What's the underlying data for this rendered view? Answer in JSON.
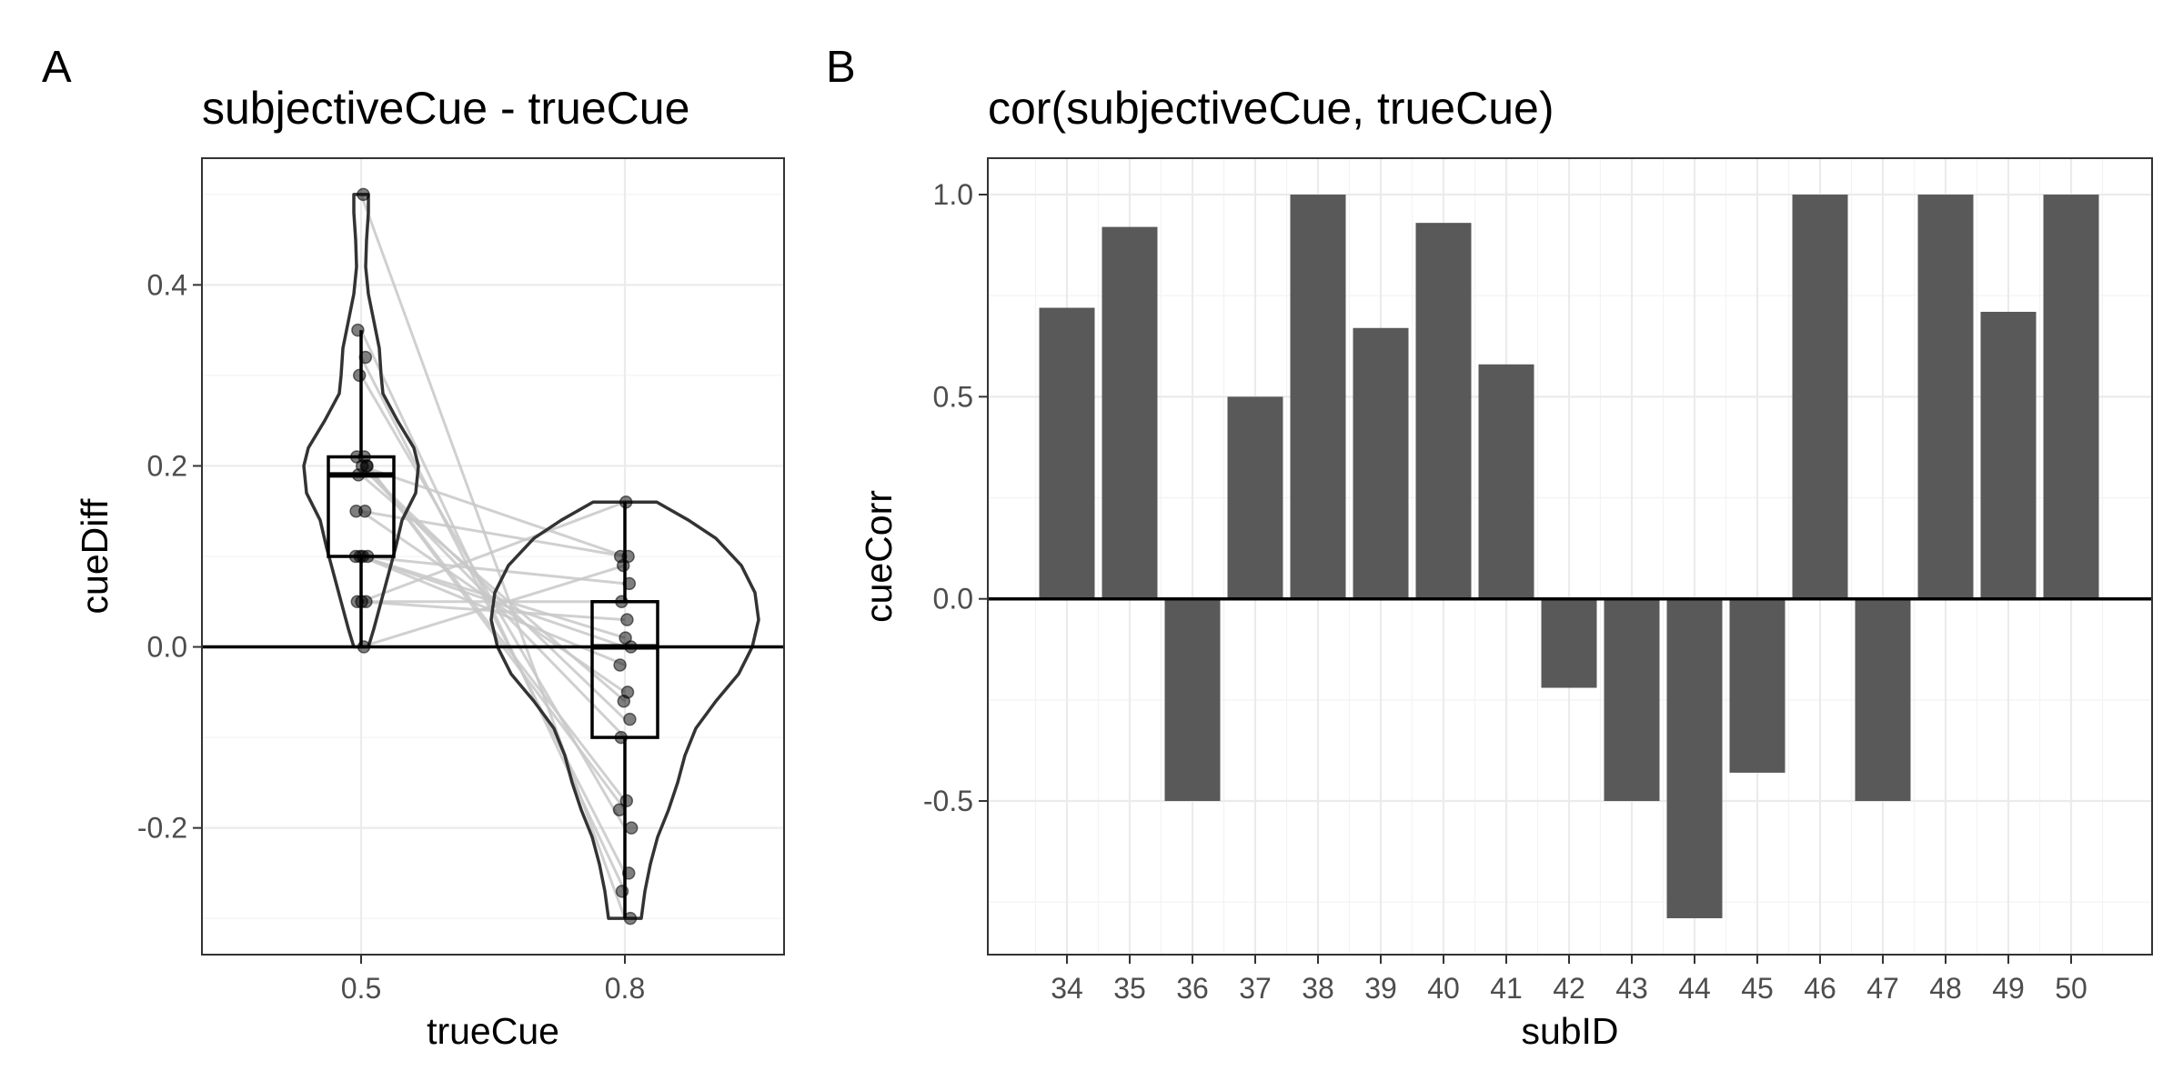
{
  "chart_data": [
    {
      "panel_tag": "A",
      "type": "violin",
      "title": "subjectiveCue - trueCue",
      "xlabel": "trueCue",
      "ylabel": "cueDiff",
      "categories": [
        "0.5",
        "0.8"
      ],
      "ylim": [
        -0.34,
        0.54
      ],
      "yticks": [
        -0.2,
        0.0,
        0.2,
        0.4
      ],
      "ytick_labels": [
        "-0.2",
        "0.0",
        "0.2",
        "0.4"
      ],
      "reference_line_y": 0,
      "grid": true,
      "boxplots": [
        {
          "category": "0.5",
          "min": 0.0,
          "q1": 0.1,
          "median": 0.19,
          "q3": 0.21,
          "max": 0.35
        },
        {
          "category": "0.8",
          "min": -0.3,
          "q1": -0.1,
          "median": 0.0,
          "q3": 0.05,
          "max": 0.16
        }
      ],
      "paired_points": [
        [
          0.5,
          -0.3
        ],
        [
          0.35,
          -0.27
        ],
        [
          0.32,
          -0.25
        ],
        [
          0.3,
          -0.2
        ],
        [
          0.21,
          -0.18
        ],
        [
          0.21,
          -0.17
        ],
        [
          0.2,
          -0.1
        ],
        [
          0.2,
          -0.08
        ],
        [
          0.19,
          -0.06
        ],
        [
          0.15,
          -0.05
        ],
        [
          0.1,
          -0.02
        ],
        [
          0.1,
          0.0
        ],
        [
          0.1,
          0.01
        ],
        [
          0.05,
          0.03
        ],
        [
          0.05,
          0.05
        ],
        [
          0.1,
          0.07
        ],
        [
          0.0,
          0.09
        ],
        [
          0.15,
          0.1
        ],
        [
          0.2,
          0.1
        ],
        [
          0.05,
          0.16
        ]
      ]
    },
    {
      "panel_tag": "B",
      "type": "bar",
      "title": "cor(subjectiveCue, trueCue)",
      "xlabel": "subID",
      "ylabel": "cueCorr",
      "categories": [
        "34",
        "35",
        "36",
        "37",
        "38",
        "39",
        "40",
        "41",
        "42",
        "43",
        "44",
        "45",
        "46",
        "47",
        "48",
        "49",
        "50"
      ],
      "values": [
        0.72,
        0.92,
        -0.5,
        0.5,
        1.0,
        0.67,
        0.93,
        0.58,
        -0.22,
        -0.5,
        -0.79,
        -0.43,
        1.0,
        -0.5,
        1.0,
        0.71,
        1.0
      ],
      "ylim": [
        -0.88,
        1.09
      ],
      "yticks": [
        -0.5,
        0.0,
        0.5,
        1.0
      ],
      "ytick_labels": [
        "-0.5",
        "0.0",
        "0.5",
        "1.0"
      ],
      "bar_color": "#595959",
      "reference_line_y": 0,
      "grid": true
    }
  ]
}
